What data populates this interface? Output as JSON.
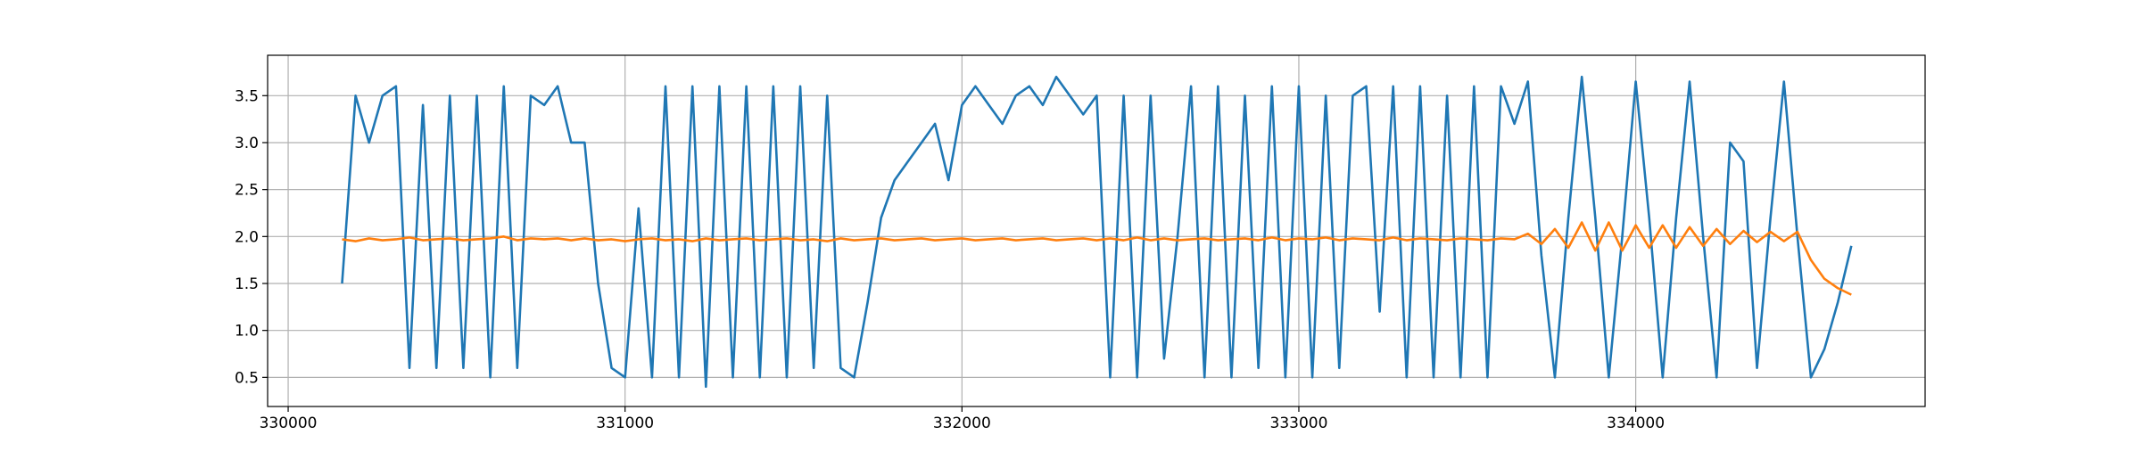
{
  "chart_data": {
    "type": "line",
    "x": [
      330160,
      330200,
      330240,
      330280,
      330320,
      330360,
      330400,
      330440,
      330480,
      330520,
      330560,
      330600,
      330640,
      330680,
      330720,
      330760,
      330800,
      330840,
      330880,
      330920,
      330960,
      331000,
      331040,
      331080,
      331120,
      331160,
      331200,
      331240,
      331280,
      331320,
      331360,
      331400,
      331440,
      331480,
      331520,
      331560,
      331600,
      331640,
      331680,
      331720,
      331760,
      331800,
      331840,
      331880,
      331920,
      331960,
      332000,
      332040,
      332080,
      332120,
      332160,
      332200,
      332240,
      332280,
      332320,
      332360,
      332400,
      332440,
      332480,
      332520,
      332560,
      332600,
      332640,
      332680,
      332720,
      332760,
      332800,
      332840,
      332880,
      332920,
      332960,
      333000,
      333040,
      333080,
      333120,
      333160,
      333200,
      333240,
      333280,
      333320,
      333360,
      333400,
      333440,
      333480,
      333520,
      333560,
      333600,
      333640,
      333680,
      333720,
      333760,
      333800,
      333840,
      333880,
      333920,
      333960,
      334000,
      334040,
      334080,
      334120,
      334160,
      334200,
      334240,
      334280,
      334320,
      334360,
      334400,
      334440,
      334480,
      334520,
      334560,
      334600,
      334640
    ],
    "series": [
      {
        "color": "#1f77b4",
        "values": [
          1.5,
          3.5,
          3.0,
          3.5,
          3.6,
          0.6,
          3.4,
          0.6,
          3.5,
          0.6,
          3.5,
          0.5,
          3.6,
          0.6,
          3.5,
          3.4,
          3.6,
          3.0,
          3.0,
          1.5,
          0.6,
          0.5,
          2.3,
          0.5,
          3.6,
          0.5,
          3.6,
          0.4,
          3.6,
          0.5,
          3.6,
          0.5,
          3.6,
          0.5,
          3.6,
          0.6,
          3.5,
          0.6,
          0.5,
          1.3,
          2.2,
          2.6,
          2.8,
          3.0,
          3.2,
          2.6,
          3.4,
          3.6,
          3.4,
          3.2,
          3.5,
          3.6,
          3.4,
          3.7,
          3.5,
          3.3,
          3.5,
          0.5,
          3.5,
          0.5,
          3.5,
          0.7,
          2.0,
          3.6,
          0.5,
          3.6,
          0.5,
          3.5,
          0.6,
          3.6,
          0.5,
          3.6,
          0.5,
          3.5,
          0.6,
          3.5,
          3.6,
          1.2,
          3.6,
          0.5,
          3.6,
          0.5,
          3.5,
          0.5,
          3.6,
          0.5,
          3.6,
          3.2,
          3.65,
          1.8,
          0.5,
          2.2,
          3.7,
          2.2,
          0.5,
          2.0,
          3.65,
          2.2,
          0.5,
          2.2,
          3.65,
          2.0,
          0.5,
          3.0,
          2.8,
          0.6,
          2.2,
          3.65,
          2.0,
          0.5,
          0.8,
          1.3,
          1.9
        ]
      },
      {
        "color": "#ff7f0e",
        "values": [
          1.97,
          1.95,
          1.98,
          1.96,
          1.97,
          1.99,
          1.96,
          1.97,
          1.98,
          1.96,
          1.97,
          1.98,
          2.0,
          1.96,
          1.98,
          1.97,
          1.98,
          1.96,
          1.98,
          1.96,
          1.97,
          1.95,
          1.97,
          1.98,
          1.96,
          1.97,
          1.95,
          1.98,
          1.96,
          1.97,
          1.98,
          1.96,
          1.97,
          1.98,
          1.96,
          1.97,
          1.95,
          1.98,
          1.96,
          1.97,
          1.98,
          1.96,
          1.97,
          1.98,
          1.96,
          1.97,
          1.98,
          1.96,
          1.97,
          1.98,
          1.96,
          1.97,
          1.98,
          1.96,
          1.97,
          1.98,
          1.96,
          1.98,
          1.96,
          1.99,
          1.96,
          1.98,
          1.96,
          1.97,
          1.98,
          1.96,
          1.97,
          1.98,
          1.96,
          1.99,
          1.96,
          1.98,
          1.97,
          1.99,
          1.96,
          1.98,
          1.97,
          1.96,
          1.99,
          1.96,
          1.98,
          1.97,
          1.96,
          1.98,
          1.97,
          1.96,
          1.98,
          1.97,
          2.03,
          1.92,
          2.08,
          1.88,
          2.15,
          1.85,
          2.15,
          1.85,
          2.12,
          1.88,
          2.12,
          1.88,
          2.1,
          1.9,
          2.08,
          1.92,
          2.06,
          1.94,
          2.05,
          1.95,
          2.05,
          1.75,
          1.55,
          1.45,
          1.38
        ]
      }
    ],
    "xlim": [
      329939,
      334859
    ],
    "ylim": [
      0.19,
      3.93
    ],
    "xticks": [
      330000,
      331000,
      332000,
      333000,
      334000
    ],
    "yticks": [
      0.5,
      {
        "value": 1,
        "label": "1.0"
      },
      1.5,
      {
        "value": 2,
        "label": "2.0"
      },
      2.5,
      {
        "value": 3,
        "label": "3.0"
      },
      3.5
    ],
    "grid": true
  }
}
